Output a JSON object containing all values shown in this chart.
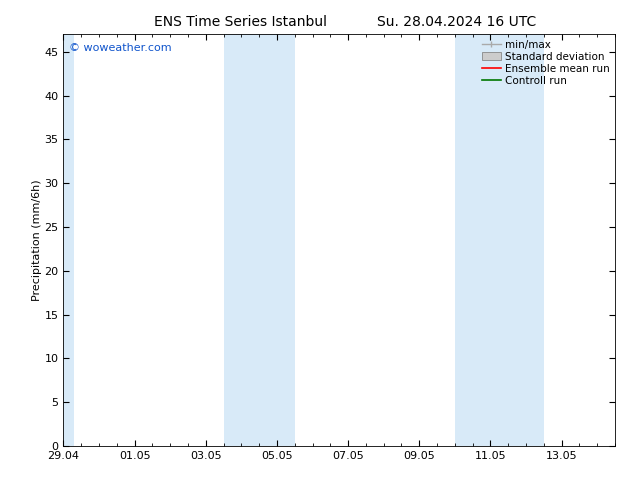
{
  "title_left": "ENS Time Series Istanbul",
  "title_right": "Su. 28.04.2024 16 UTC",
  "ylabel": "Precipitation (mm/6h)",
  "ylim": [
    0,
    47
  ],
  "yticks": [
    0,
    5,
    10,
    15,
    20,
    25,
    30,
    35,
    40,
    45
  ],
  "xlim": [
    0,
    15.5
  ],
  "xtick_labels": [
    "29.04",
    "01.05",
    "03.05",
    "05.05",
    "07.05",
    "09.05",
    "11.05",
    "13.05"
  ],
  "xtick_positions": [
    0,
    2,
    4,
    6,
    8,
    10,
    12,
    14
  ],
  "shaded_regions": [
    {
      "x_start": 4.5,
      "x_end": 6.5,
      "color": "#d8eaf8"
    },
    {
      "x_start": 11.0,
      "x_end": 13.5,
      "color": "#d8eaf8"
    }
  ],
  "left_band": {
    "x_start": 0.0,
    "x_end": 0.3,
    "color": "#d8eaf8"
  },
  "watermark_text": "© woweather.com",
  "watermark_color": "#1155cc",
  "watermark_fontsize": 8,
  "legend_labels": [
    "min/max",
    "Standard deviation",
    "Ensemble mean run",
    "Controll run"
  ],
  "minmax_color": "#aaaaaa",
  "std_facecolor": "#cccccc",
  "std_edgecolor": "#888888",
  "ensemble_color": "#ff0000",
  "control_color": "#007700",
  "background_color": "#ffffff",
  "plot_bg_color": "#ffffff",
  "title_fontsize": 10,
  "axis_label_fontsize": 8,
  "tick_fontsize": 8,
  "legend_fontsize": 7.5
}
